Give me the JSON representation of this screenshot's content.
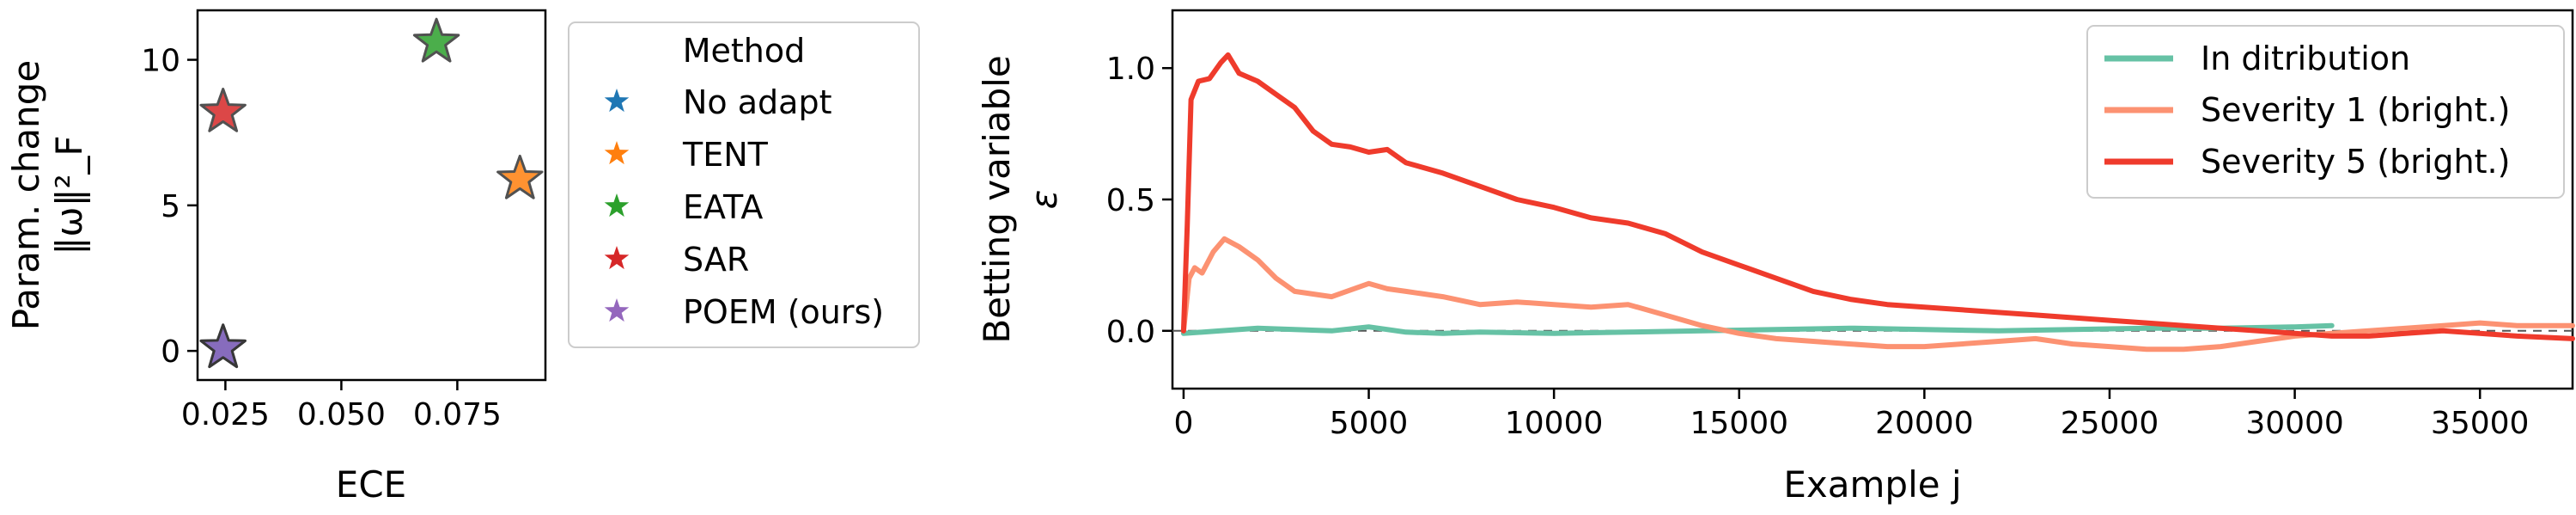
{
  "chart_data": [
    {
      "type": "scatter",
      "xlabel": "ECE",
      "ylabel_line1": "Param. change",
      "ylabel_line2": "‖ω‖²_F",
      "xlim": [
        0.019,
        0.094
      ],
      "ylim": [
        -1.0,
        11.7
      ],
      "xticks": [
        {
          "v": 0.025,
          "label": "0.025"
        },
        {
          "v": 0.05,
          "label": "0.050"
        },
        {
          "v": 0.075,
          "label": "0.075"
        }
      ],
      "yticks": [
        {
          "v": 0,
          "label": "0"
        },
        {
          "v": 5,
          "label": "5"
        },
        {
          "v": 10,
          "label": "10"
        }
      ],
      "legend": {
        "title": "Method",
        "placement": "outside-right"
      },
      "series": [
        {
          "name": "No adapt",
          "color": "#1f77b4",
          "points": [
            {
              "x": 0.0245,
              "y": 0.1
            }
          ]
        },
        {
          "name": "TENT",
          "color": "#ff7f0e",
          "points": [
            {
              "x": 0.0885,
              "y": 5.9
            }
          ]
        },
        {
          "name": "EATA",
          "color": "#2ca02c",
          "points": [
            {
              "x": 0.0705,
              "y": 10.6
            }
          ]
        },
        {
          "name": "SAR",
          "color": "#d62728",
          "points": [
            {
              "x": 0.0245,
              "y": 8.2
            }
          ]
        },
        {
          "name": "POEM (ours)",
          "color": "#9467bd",
          "points": [
            {
              "x": 0.0245,
              "y": 0.1
            }
          ]
        }
      ]
    },
    {
      "type": "line",
      "xlabel": "Example j",
      "ylabel_line1": "Betting variable",
      "ylabel_line2": "ε",
      "xlim": [
        -300,
        37500
      ],
      "ylim": [
        -0.22,
        1.22
      ],
      "xticks": [
        {
          "v": 0,
          "label": "0"
        },
        {
          "v": 5000,
          "label": "5000"
        },
        {
          "v": 10000,
          "label": "10000"
        },
        {
          "v": 15000,
          "label": "15000"
        },
        {
          "v": 20000,
          "label": "20000"
        },
        {
          "v": 25000,
          "label": "25000"
        },
        {
          "v": 30000,
          "label": "30000"
        },
        {
          "v": 35000,
          "label": "35000"
        }
      ],
      "yticks": [
        {
          "v": 0.0,
          "label": "0.0"
        },
        {
          "v": 0.5,
          "label": "0.5"
        },
        {
          "v": 1.0,
          "label": "1.0"
        }
      ],
      "reference_line": {
        "y": 0,
        "style": "dashed"
      },
      "legend": {
        "placement": "top-right"
      },
      "series": [
        {
          "name": "In ditribution",
          "color": "#66c2a5",
          "x": [
            0,
            1000,
            2000,
            3000,
            4000,
            5000,
            6000,
            7000,
            8000,
            10000,
            12000,
            14000,
            16000,
            18000,
            20000,
            22000,
            24000,
            26000,
            28000,
            30000,
            31000
          ],
          "y": [
            -0.01,
            0.0,
            0.01,
            0.005,
            0.0,
            0.015,
            -0.005,
            -0.01,
            -0.005,
            -0.01,
            -0.005,
            0.0,
            0.005,
            0.01,
            0.005,
            0.0,
            0.005,
            0.01,
            0.01,
            0.015,
            0.02
          ]
        },
        {
          "name": "Severity 1 (bright.)",
          "color": "#fc9272",
          "x": [
            0,
            150,
            300,
            500,
            800,
            1100,
            1500,
            2000,
            2500,
            3000,
            4000,
            5000,
            5500,
            6000,
            7000,
            8000,
            9000,
            10000,
            11000,
            12000,
            13000,
            14000,
            15000,
            16000,
            17000,
            18000,
            19000,
            20000,
            21000,
            22000,
            23000,
            24000,
            25000,
            26000,
            27000,
            28000,
            29000,
            30000,
            31000,
            32000,
            33000,
            34000,
            35000,
            36000,
            37500
          ],
          "y": [
            0.0,
            0.2,
            0.24,
            0.22,
            0.3,
            0.35,
            0.32,
            0.27,
            0.2,
            0.15,
            0.13,
            0.18,
            0.16,
            0.15,
            0.13,
            0.1,
            0.11,
            0.1,
            0.09,
            0.1,
            0.06,
            0.02,
            -0.01,
            -0.03,
            -0.04,
            -0.05,
            -0.06,
            -0.06,
            -0.05,
            -0.04,
            -0.03,
            -0.05,
            -0.06,
            -0.07,
            -0.07,
            -0.06,
            -0.04,
            -0.02,
            -0.01,
            0.0,
            0.01,
            0.02,
            0.03,
            0.02,
            0.02
          ]
        },
        {
          "name": "Severity 5 (bright.)",
          "color": "#ef3b2c",
          "x": [
            0,
            100,
            200,
            400,
            700,
            1000,
            1200,
            1500,
            2000,
            2500,
            3000,
            3500,
            4000,
            4500,
            5000,
            5500,
            6000,
            7000,
            8000,
            9000,
            10000,
            11000,
            12000,
            13000,
            14000,
            15000,
            16000,
            17000,
            18000,
            19000,
            20000,
            21000,
            22000,
            23000,
            24000,
            25000,
            26000,
            27000,
            28000,
            29000,
            30000,
            31000,
            32000,
            33000,
            34000,
            35000,
            36000,
            37500
          ],
          "y": [
            0.0,
            0.4,
            0.88,
            0.95,
            0.96,
            1.02,
            1.05,
            0.98,
            0.95,
            0.9,
            0.85,
            0.76,
            0.71,
            0.7,
            0.68,
            0.69,
            0.64,
            0.6,
            0.55,
            0.5,
            0.47,
            0.43,
            0.41,
            0.37,
            0.3,
            0.25,
            0.2,
            0.15,
            0.12,
            0.1,
            0.09,
            0.08,
            0.07,
            0.06,
            0.05,
            0.04,
            0.03,
            0.02,
            0.01,
            0.0,
            -0.01,
            -0.02,
            -0.02,
            -0.01,
            0.0,
            -0.01,
            -0.02,
            -0.03
          ]
        }
      ]
    }
  ]
}
